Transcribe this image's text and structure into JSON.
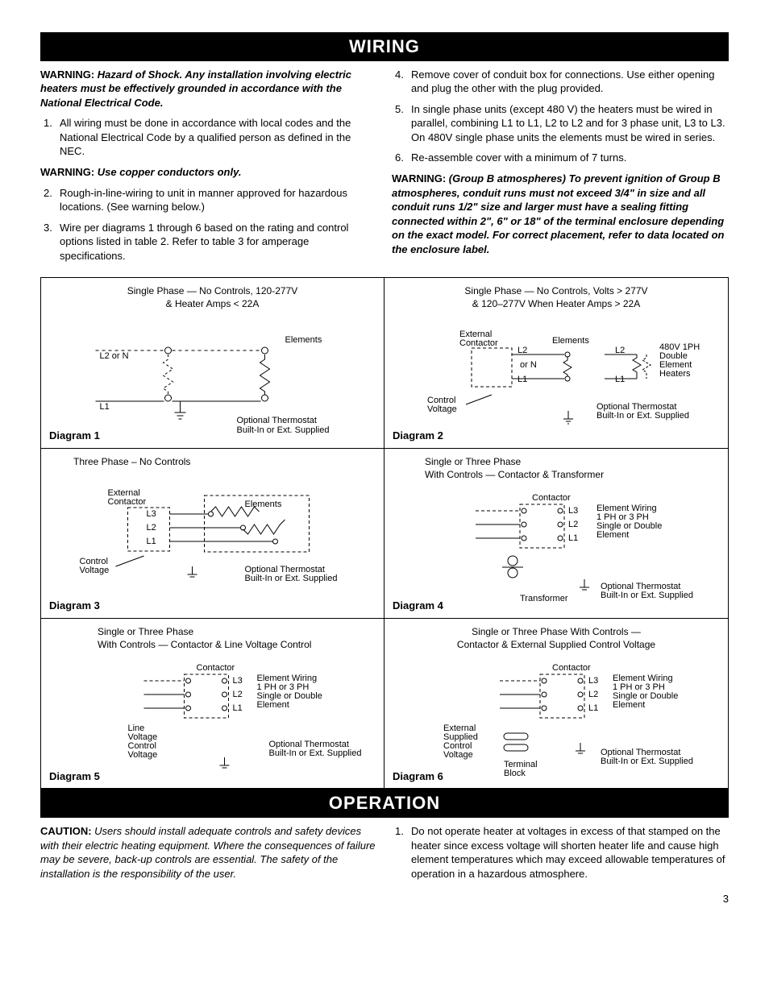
{
  "page_number": "3",
  "colors": {
    "header_bg": "#000000",
    "header_fg": "#ffffff",
    "text": "#000000",
    "line": "#000000",
    "dash": "#000000"
  },
  "typography": {
    "body_fontsize_pt": 10,
    "header_fontsize_pt": 16,
    "diagram_label_fontsize_pt": 8
  },
  "sections": {
    "wiring": {
      "header": "WIRING",
      "left": {
        "warning1_label": "WARNING:",
        "warning1_text": "Hazard of Shock. Any installation involving electric heaters must be effectively grounded in accordance with the National Electrical Code.",
        "item1_num": "1.",
        "item1": "All wiring must be done in accordance with local codes and the National Electrical Code by a qualified person as defined in the NEC.",
        "warning2_label": "WARNING:",
        "warning2_text": "Use copper conductors only.",
        "item2_num": "2.",
        "item2": "Rough-in-line-wiring to unit in manner approved for hazardous locations. (See warning below.)",
        "item3_num": "3.",
        "item3": "Wire per diagrams 1 through 6 based on the rating and control options listed in table 2. Refer to table 3 for amperage specifications."
      },
      "right": {
        "item4_num": "4.",
        "item4": "Remove cover of conduit box for connections. Use either opening and plug the other with the plug provided.",
        "item5_num": "5.",
        "item5": "In single phase units (except 480 V) the heaters must be wired in parallel, combining L1 to L1, L2 to L2 and for 3 phase unit, L3 to L3. On 480V single phase units the elements must be wired in series.",
        "item6_num": "6.",
        "item6": "Re-assemble cover with a minimum of 7 turns.",
        "warning3_label": "WARNING:",
        "warning3_text": "(Group B atmospheres) To prevent ignition of Group B atmospheres, conduit runs must not exceed 3/4\" in size and all conduit runs 1/2\" size and larger must have a sealing fitting connected within 2\", 6\" or 18\" of the terminal enclosure depending on the exact model. For correct placement, refer to data located on the enclosure label."
      }
    },
    "operation": {
      "header": "OPERATION",
      "left": {
        "caution_label": "CAUTION:",
        "caution_text": "Users should install adequate controls and safety devices with their electric heating equipment. Where the consequences of failure may be severe, back-up controls are essential. The safety of the installation is the responsibility of the user."
      },
      "right": {
        "item1_num": "1.",
        "item1": "Do not operate heater at voltages in excess of that stamped on the heater since excess voltage will shorten heater life and cause high element temperatures which may exceed allowable temperatures of operation in a hazardous atmosphere."
      }
    }
  },
  "diagrams": {
    "d1": {
      "caption": "Diagram 1",
      "title": "Single Phase — No Controls, 120-277V\n& Heater Amps < 22A",
      "labels": {
        "l2": "L2 or N",
        "l1": "L1",
        "elements": "Elements",
        "therm": "Optional Thermostat\nBuilt-In or Ext. Supplied"
      }
    },
    "d2": {
      "caption": "Diagram 2",
      "title": "Single Phase — No Controls, Volts > 277V\n& 120–277V When Heater Amps > 22A",
      "labels": {
        "ext_contactor": "External\nContactor",
        "l2": "L2",
        "orN": "or N",
        "l1": "L1",
        "l2b": "L2",
        "l1b": "L1",
        "elements": "Elements",
        "side": "480V 1PH\nDouble\nElement\nHeaters",
        "ctrl": "Control\nVoltage",
        "therm": "Optional Thermostat\nBuilt-In or Ext. Supplied"
      }
    },
    "d3": {
      "caption": "Diagram 3",
      "title": "Three Phase – No Controls",
      "labels": {
        "ext_contactor": "External\nContactor",
        "l3": "L3",
        "l2": "L2",
        "l1": "L1",
        "elements": "Elements",
        "ctrl": "Control\nVoltage",
        "therm": "Optional Thermostat\nBuilt-In or Ext. Supplied"
      }
    },
    "d4": {
      "caption": "Diagram 4",
      "title": "Single or Three Phase\nWith Controls — Contactor & Transformer",
      "labels": {
        "contactor": "Contactor",
        "l3": "L3",
        "l2": "L2",
        "l1": "L1",
        "ew": "Element Wiring\n1 PH or 3 PH\nSingle or Double\nElement",
        "transformer": "Transformer",
        "therm": "Optional Thermostat\nBuilt-In or Ext. Supplied"
      }
    },
    "d5": {
      "caption": "Diagram 5",
      "title": "Single or Three Phase\nWith Controls — Contactor & Line Voltage Control",
      "labels": {
        "contactor": "Contactor",
        "l3": "L3",
        "l2": "L2",
        "l1": "L1",
        "ew": "Element Wiring\n1 PH or 3 PH\nSingle or Double\nElement",
        "lv": "Line\nVoltage\nControl\nVoltage",
        "therm": "Optional Thermostat\nBuilt-In or Ext. Supplied"
      }
    },
    "d6": {
      "caption": "Diagram 6",
      "title": "Single or Three Phase With Controls —\nContactor & External Supplied Control Voltage",
      "labels": {
        "contactor": "Contactor",
        "l3": "L3",
        "l2": "L2",
        "l1": "L1",
        "ew": "Element Wiring\n1 PH or 3 PH\nSingle or Double\nElement",
        "escv": "External\nSupplied\nControl\nVoltage",
        "tb": "Terminal\nBlock",
        "therm": "Optional Thermostat\nBuilt-In or Ext. Supplied"
      }
    }
  }
}
